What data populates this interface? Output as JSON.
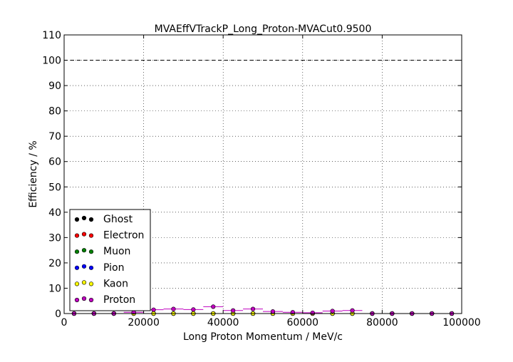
{
  "chart_data": {
    "type": "scatter",
    "title": "MVAEffVTrackP_Long_Proton-MVACut0.9500",
    "xlabel": "Long Proton Momentum / MeV/c",
    "ylabel": "Efficiency / %",
    "xlim": [
      0,
      100000
    ],
    "ylim": [
      0,
      110
    ],
    "xticks": [
      0,
      20000,
      40000,
      60000,
      80000,
      100000
    ],
    "xtick_labels": [
      "0",
      "20000",
      "40000",
      "60000",
      "80000",
      "100000"
    ],
    "yticks": [
      0,
      10,
      20,
      30,
      40,
      50,
      60,
      70,
      80,
      90,
      100,
      110
    ],
    "ytick_labels": [
      "0",
      "10",
      "20",
      "30",
      "40",
      "50",
      "60",
      "70",
      "80",
      "90",
      "100",
      "110"
    ],
    "grid": true,
    "reference_line": 100,
    "legend_position": "lower-left",
    "bin_width": 5000,
    "x": [
      2500,
      7500,
      12500,
      17500,
      22500,
      27500,
      32500,
      37500,
      42500,
      47500,
      52500,
      57500,
      62500,
      67500,
      72500,
      77500,
      82500,
      87500,
      92500,
      97500
    ],
    "series": [
      {
        "name": "Ghost",
        "color": "#000000",
        "values": [
          0,
          0,
          0,
          0,
          0,
          0,
          0,
          0,
          0,
          0,
          0,
          0,
          0,
          0,
          0,
          0,
          0,
          0,
          0,
          0
        ]
      },
      {
        "name": "Electron",
        "color": "#ff0000",
        "values": [
          0,
          0,
          0,
          0,
          0,
          0,
          0,
          0,
          0,
          0,
          0,
          0,
          0,
          0,
          0,
          0,
          0,
          0,
          0,
          0
        ]
      },
      {
        "name": "Muon",
        "color": "#008000",
        "values": [
          0,
          0,
          0,
          0,
          0,
          0,
          0,
          0,
          0,
          0,
          0,
          0,
          0,
          0,
          0,
          0,
          0,
          0,
          0,
          0
        ]
      },
      {
        "name": "Pion",
        "color": "#0000ff",
        "values": [
          0,
          0,
          0,
          0,
          0,
          0,
          0,
          0,
          0,
          0,
          0,
          0,
          0,
          0,
          0,
          0,
          0,
          0,
          0,
          0
        ]
      },
      {
        "name": "Kaon",
        "color": "#ffff00",
        "values": [
          0,
          0,
          0,
          0,
          0,
          0,
          0,
          0,
          0,
          0,
          0,
          0,
          0,
          0,
          0,
          0,
          0,
          0,
          0,
          0
        ]
      },
      {
        "name": "Proton",
        "color": "#bf00bf",
        "values": [
          0,
          0,
          0,
          0.5,
          1.5,
          1.8,
          1.6,
          2.7,
          1.2,
          1.8,
          0.8,
          0.5,
          0.3,
          1.0,
          1.2,
          0,
          0,
          0,
          0,
          0
        ]
      }
    ]
  }
}
